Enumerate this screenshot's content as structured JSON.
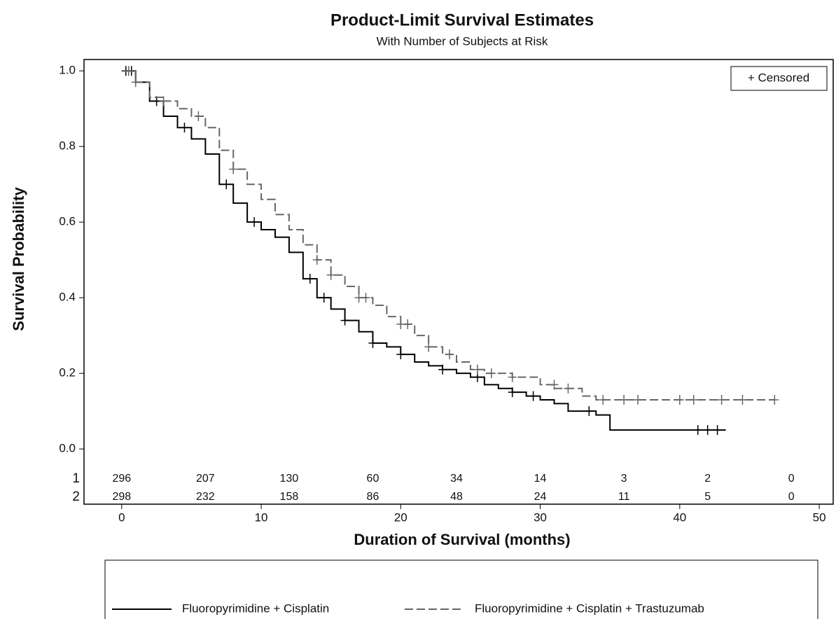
{
  "chart_data": {
    "type": "survival",
    "title": "Product-Limit Survival Estimates",
    "subtitle": "With Number of Subjects at Risk",
    "x_label": "Duration of Survival (months)",
    "y_label": "Survival Probability",
    "xlim": [
      -2.7,
      51
    ],
    "ylim": [
      -0.146,
      1.03
    ],
    "xticks": [
      0,
      10,
      20,
      30,
      40,
      50
    ],
    "yticks": [
      {
        "value": 0,
        "label": "0.0"
      },
      {
        "value": 0.2,
        "label": "0.2"
      },
      {
        "value": 0.4,
        "label": "0.4"
      },
      {
        "value": 0.6,
        "label": "0.6"
      },
      {
        "value": 0.8,
        "label": "0.8"
      },
      {
        "value": 1,
        "label": "1.0"
      }
    ],
    "censor_legend": "+ Censored",
    "series": [
      {
        "name": "Fluoropyrimidine + Cisplatin",
        "color": "#000000",
        "dash": false,
        "x": [
          0,
          1,
          2,
          3,
          4,
          5,
          6,
          7,
          8,
          9,
          10,
          11,
          12,
          13,
          14,
          15,
          16,
          17,
          18,
          19,
          20,
          21,
          22,
          23,
          24,
          25,
          26,
          27,
          28,
          29,
          30,
          31,
          32,
          34,
          35,
          43.3
        ],
        "values": [
          1.0,
          0.97,
          0.92,
          0.88,
          0.85,
          0.82,
          0.78,
          0.7,
          0.65,
          0.6,
          0.58,
          0.56,
          0.52,
          0.45,
          0.4,
          0.37,
          0.34,
          0.31,
          0.28,
          0.27,
          0.25,
          0.23,
          0.22,
          0.21,
          0.2,
          0.19,
          0.17,
          0.16,
          0.15,
          0.14,
          0.13,
          0.12,
          0.1,
          0.09,
          0.05,
          0.05
        ],
        "censored_x": [
          0.3,
          0.7,
          2.5,
          4.5,
          7.5,
          9.5,
          13.5,
          14.5,
          16,
          18,
          20,
          23,
          25.5,
          28,
          29.5,
          33.5,
          41.3,
          42,
          42.7
        ],
        "censored_y": [
          1.0,
          1.0,
          0.92,
          0.85,
          0.7,
          0.6,
          0.45,
          0.4,
          0.34,
          0.28,
          0.25,
          0.21,
          0.19,
          0.15,
          0.14,
          0.1,
          0.05,
          0.05,
          0.05
        ]
      },
      {
        "name": "Fluoropyrimidine + Cisplatin + Trastuzumab",
        "color": "#666666",
        "dash": true,
        "x": [
          0,
          1,
          2,
          3,
          4,
          5,
          6,
          7,
          8,
          9,
          10,
          11,
          12,
          13,
          14,
          15,
          16,
          17,
          18,
          19,
          20,
          21,
          22,
          23,
          24,
          25,
          26,
          28,
          30,
          31,
          33,
          34,
          46.8
        ],
        "values": [
          1.0,
          0.97,
          0.93,
          0.92,
          0.9,
          0.88,
          0.85,
          0.79,
          0.74,
          0.7,
          0.66,
          0.62,
          0.58,
          0.54,
          0.5,
          0.46,
          0.43,
          0.4,
          0.38,
          0.35,
          0.33,
          0.3,
          0.27,
          0.25,
          0.23,
          0.21,
          0.2,
          0.19,
          0.17,
          0.16,
          0.14,
          0.13,
          0.13
        ],
        "censored_x": [
          0.5,
          1,
          3,
          5.5,
          8,
          14,
          15,
          17,
          17.5,
          20,
          20.5,
          22,
          23.5,
          25.5,
          26.5,
          28,
          31,
          32,
          34.5,
          36,
          37,
          40,
          41,
          43,
          44.5,
          46.8
        ],
        "censored_y": [
          1.0,
          0.97,
          0.92,
          0.88,
          0.74,
          0.5,
          0.46,
          0.4,
          0.4,
          0.33,
          0.33,
          0.27,
          0.25,
          0.21,
          0.2,
          0.19,
          0.17,
          0.16,
          0.13,
          0.13,
          0.13,
          0.13,
          0.13,
          0.13,
          0.13,
          0.13
        ]
      }
    ],
    "at_risk_times": [
      0,
      6,
      12,
      18,
      24,
      30,
      36,
      42,
      48
    ],
    "at_risk": [
      {
        "label": "1",
        "values": [
          296,
          207,
          130,
          60,
          34,
          14,
          3,
          2,
          0
        ]
      },
      {
        "label": "2",
        "values": [
          298,
          232,
          158,
          86,
          48,
          24,
          11,
          5,
          0
        ]
      }
    ]
  }
}
